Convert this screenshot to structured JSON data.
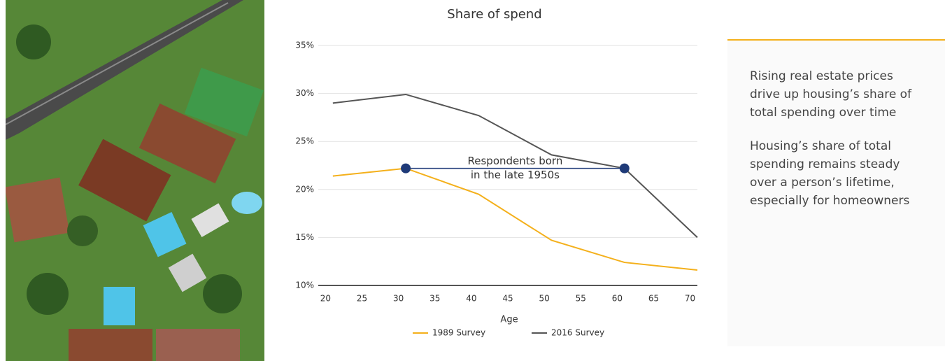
{
  "chart_data": {
    "type": "line",
    "title": "Share of spend",
    "x_label": "Age",
    "x": [
      21,
      31,
      41,
      51,
      61,
      71
    ],
    "series": [
      {
        "name": "1989 Survey",
        "color": "#f4b01b",
        "values": [
          21.4,
          22.2,
          19.5,
          14.7,
          12.4,
          11.6
        ]
      },
      {
        "name": "2016 Survey",
        "color": "#555555",
        "values": [
          29.0,
          29.9,
          27.7,
          23.6,
          22.2,
          15.0
        ]
      }
    ],
    "xlim": [
      19,
      71
    ],
    "xticks": [
      20,
      25,
      30,
      35,
      40,
      45,
      50,
      55,
      60,
      65,
      70
    ],
    "ylim": [
      10,
      35
    ],
    "yticks": [
      {
        "value": 10,
        "label": "10%"
      },
      {
        "value": 15,
        "label": "15%"
      },
      {
        "value": 20,
        "label": "20%"
      },
      {
        "value": 25,
        "label": "25%"
      },
      {
        "value": 30,
        "label": "30%"
      },
      {
        "value": 35,
        "label": "35%"
      }
    ],
    "grid": true,
    "legend": "bottom",
    "annotation": {
      "lines": [
        "Respondents born",
        "in the late 1950s"
      ],
      "color": "#1f3a78",
      "points": [
        {
          "x": 31,
          "y": 22.2
        },
        {
          "x": 61,
          "y": 22.2
        }
      ]
    }
  },
  "sidebar": {
    "paragraphs": [
      [
        "Rising real estate prices",
        "drive up housing’s share of",
        "total spending over time"
      ],
      [
        "Housing’s share of total",
        "spending remains steady",
        "over a person’s lifetime,",
        "especially for homeowners"
      ]
    ]
  }
}
